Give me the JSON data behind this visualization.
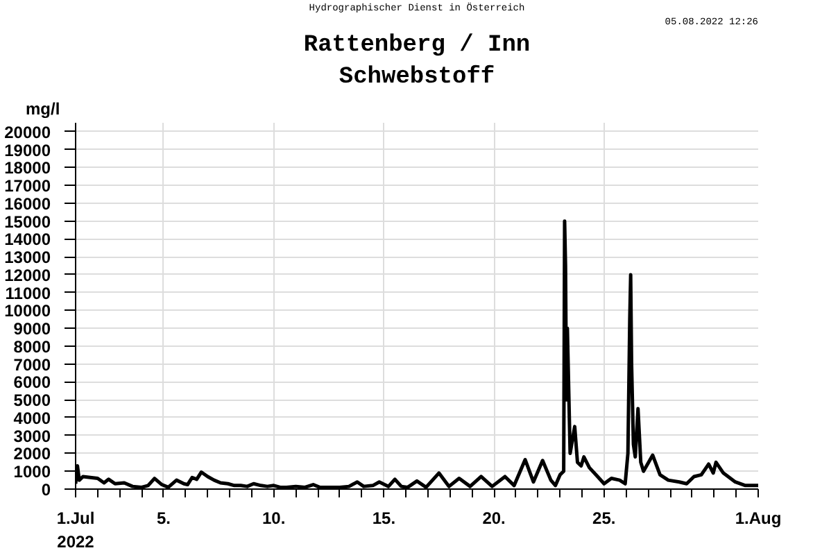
{
  "chart_data": {
    "type": "line",
    "title": "Rattenberg / Inn",
    "subtitle": "Schwebstoff",
    "ylabel": "mg/l",
    "annotations": [
      "Hydrographischer Dienst in Österreich",
      "05.08.2022 12:26"
    ],
    "x": [
      "2022-07-01T00:00",
      "2022-07-01T02:00",
      "2022-07-01T04:00",
      "2022-07-01T08:00",
      "2022-07-01T16:00",
      "2022-07-02T00:00",
      "2022-07-02T07:00",
      "2022-07-02T12:00",
      "2022-07-02T19:00",
      "2022-07-03T05:00",
      "2022-07-03T14:00",
      "2022-07-04T00:00",
      "2022-07-04T07:00",
      "2022-07-04T14:00",
      "2022-07-04T22:00",
      "2022-07-05T05:00",
      "2022-07-05T14:00",
      "2022-07-05T22:00",
      "2022-07-06T02:00",
      "2022-07-06T07:00",
      "2022-07-06T12:00",
      "2022-07-06T17:00",
      "2022-07-07T00:00",
      "2022-07-07T07:00",
      "2022-07-07T14:00",
      "2022-07-07T22:00",
      "2022-07-08T05:00",
      "2022-07-08T12:00",
      "2022-07-08T19:00",
      "2022-07-09T02:00",
      "2022-07-09T10:00",
      "2022-07-09T17:00",
      "2022-07-10T00:00",
      "2022-07-10T07:00",
      "2022-07-10T14:00",
      "2022-07-11T00:00",
      "2022-07-11T10:00",
      "2022-07-11T19:00",
      "2022-07-12T02:00",
      "2022-07-12T12:00",
      "2022-07-13T00:00",
      "2022-07-13T10:00",
      "2022-07-13T19:00",
      "2022-07-14T02:00",
      "2022-07-14T12:00",
      "2022-07-14T19:00",
      "2022-07-15T05:00",
      "2022-07-15T12:00",
      "2022-07-15T19:00",
      "2022-07-16T02:00",
      "2022-07-16T12:00",
      "2022-07-16T22:00",
      "2022-07-17T12:00",
      "2022-07-17T23:00",
      "2022-07-18T10:00",
      "2022-07-18T22:00",
      "2022-07-19T10:00",
      "2022-07-19T22:00",
      "2022-07-20T12:00",
      "2022-07-20T22:00",
      "2022-07-21T10:00",
      "2022-07-21T19:00",
      "2022-07-22T05:00",
      "2022-07-22T14:00",
      "2022-07-22T19:00",
      "2022-07-23T00:00",
      "2022-07-23T04:00",
      "2022-07-23T05:00",
      "2022-07-23T06:00",
      "2022-07-23T07:00",
      "2022-07-23T08:00",
      "2022-07-23T11:00",
      "2022-07-23T16:00",
      "2022-07-23T19:00",
      "2022-07-23T23:00",
      "2022-07-24T02:00",
      "2022-07-24T08:00",
      "2022-07-24T17:00",
      "2022-07-25T00:00",
      "2022-07-25T08:00",
      "2022-07-25T17:00",
      "2022-07-25T23:00",
      "2022-07-26T02:00",
      "2022-07-26T04:00",
      "2022-07-26T05:00",
      "2022-07-26T06:00",
      "2022-07-26T08:00",
      "2022-07-26T10:00",
      "2022-07-26T13:00",
      "2022-07-26T16:00",
      "2022-07-26T19:00",
      "2022-07-27T05:00",
      "2022-07-27T13:00",
      "2022-07-27T22:00",
      "2022-07-28T10:00",
      "2022-07-28T18:00",
      "2022-07-29T02:00",
      "2022-07-29T10:00",
      "2022-07-29T18:00",
      "2022-07-29T23:00",
      "2022-07-30T02:00",
      "2022-07-30T10:00",
      "2022-07-30T23:00",
      "2022-07-31T10:00",
      "2022-08-01T00:00"
    ],
    "series": [
      {
        "color": "#000000",
        "values": [
          300,
          1300,
          500,
          700,
          650,
          600,
          350,
          550,
          300,
          350,
          150,
          100,
          200,
          600,
          250,
          100,
          500,
          300,
          250,
          650,
          550,
          950,
          700,
          500,
          350,
          300,
          200,
          200,
          150,
          300,
          200,
          150,
          200,
          100,
          100,
          150,
          100,
          250,
          100,
          100,
          100,
          150,
          400,
          150,
          200,
          400,
          150,
          550,
          150,
          100,
          450,
          100,
          900,
          150,
          600,
          150,
          700,
          150,
          700,
          200,
          1650,
          400,
          1600,
          500,
          200,
          800,
          1000,
          15000,
          12500,
          5000,
          9000,
          2000,
          3500,
          1500,
          1300,
          1800,
          1200,
          700,
          300,
          600,
          500,
          300,
          2000,
          9500,
          12000,
          7000,
          2500,
          1800,
          4500,
          1500,
          1000,
          1900,
          800,
          500,
          400,
          300,
          700,
          800,
          1400,
          900,
          1500,
          900,
          400,
          200,
          200
        ]
      }
    ],
    "xlim": [
      "2022-07-01T00:00",
      "2022-08-01T00:00"
    ],
    "xticks": [
      {
        "value": "2022-07-01T00:00",
        "label": "1.Jul\n2022"
      },
      {
        "value": "2022-07-02T00:00",
        "label": null
      },
      {
        "value": "2022-07-03T00:00",
        "label": null
      },
      {
        "value": "2022-07-04T00:00",
        "label": null
      },
      {
        "value": "2022-07-05T00:00",
        "label": "5."
      },
      {
        "value": "2022-07-06T00:00",
        "label": null
      },
      {
        "value": "2022-07-07T00:00",
        "label": null
      },
      {
        "value": "2022-07-08T00:00",
        "label": null
      },
      {
        "value": "2022-07-09T00:00",
        "label": null
      },
      {
        "value": "2022-07-10T00:00",
        "label": "10."
      },
      {
        "value": "2022-07-11T00:00",
        "label": null
      },
      {
        "value": "2022-07-12T00:00",
        "label": null
      },
      {
        "value": "2022-07-13T00:00",
        "label": null
      },
      {
        "value": "2022-07-14T00:00",
        "label": null
      },
      {
        "value": "2022-07-15T00:00",
        "label": "15."
      },
      {
        "value": "2022-07-16T00:00",
        "label": null
      },
      {
        "value": "2022-07-17T00:00",
        "label": null
      },
      {
        "value": "2022-07-18T00:00",
        "label": null
      },
      {
        "value": "2022-07-19T00:00",
        "label": null
      },
      {
        "value": "2022-07-20T00:00",
        "label": "20."
      },
      {
        "value": "2022-07-21T00:00",
        "label": null
      },
      {
        "value": "2022-07-22T00:00",
        "label": null
      },
      {
        "value": "2022-07-23T00:00",
        "label": null
      },
      {
        "value": "2022-07-24T00:00",
        "label": null
      },
      {
        "value": "2022-07-25T00:00",
        "label": "25."
      },
      {
        "value": "2022-07-26T00:00",
        "label": null
      },
      {
        "value": "2022-07-27T00:00",
        "label": null
      },
      {
        "value": "2022-07-28T00:00",
        "label": null
      },
      {
        "value": "2022-07-29T00:00",
        "label": null
      },
      {
        "value": "2022-07-30T00:00",
        "label": null
      },
      {
        "value": "2022-07-31T00:00",
        "label": null
      },
      {
        "value": "2022-08-01T00:00",
        "label": "1.Aug"
      }
    ],
    "ylim": [
      0,
      20500
    ],
    "yticks": [
      0,
      1000,
      2000,
      3000,
      4000,
      5000,
      6000,
      7000,
      8000,
      9000,
      10000,
      11000,
      12000,
      13000,
      14000,
      15000,
      16000,
      17000,
      18000,
      19000,
      20000
    ],
    "grid": true,
    "marker": "none",
    "line_style": "solid"
  }
}
